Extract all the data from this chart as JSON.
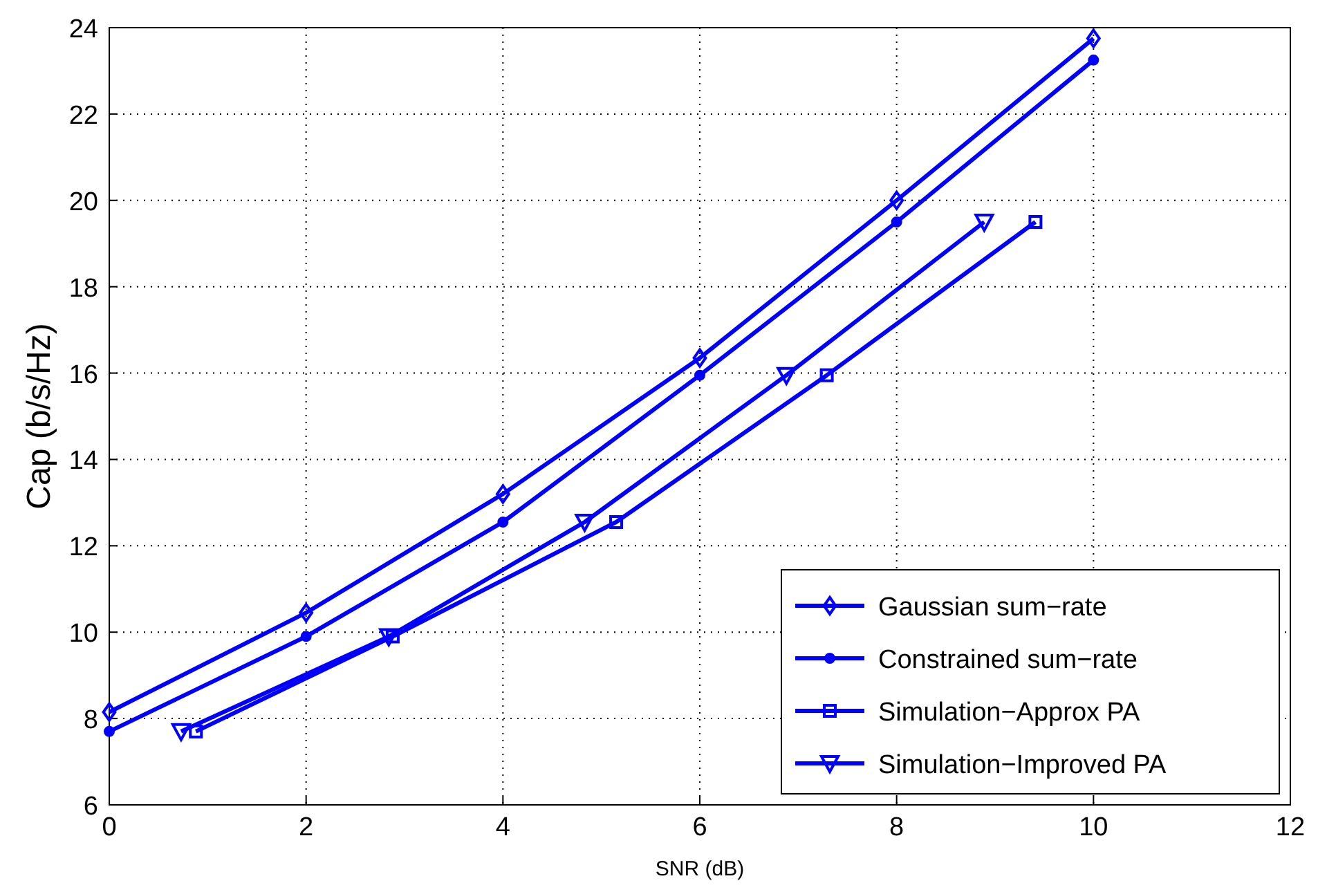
{
  "chart_data": {
    "type": "line",
    "xlabel": "SNR (dB)",
    "ylabel": "Cap (b/s/Hz)",
    "xlim": [
      0,
      12
    ],
    "xticks": [
      0,
      2,
      4,
      6,
      8,
      10,
      12
    ],
    "ylim": [
      6,
      24
    ],
    "yticks": [
      6,
      8,
      10,
      12,
      14,
      16,
      18,
      20,
      22,
      24
    ],
    "grid": true,
    "legend": "bottom right",
    "line_style": "solid",
    "series": [
      {
        "name": "Gaussian sum−rate",
        "color": "#0000ff",
        "marker": "diamond",
        "x": [
          0,
          2,
          4,
          6,
          8,
          10
        ],
        "values": [
          8.15,
          10.45,
          13.2,
          16.35,
          20.0,
          23.75
        ]
      },
      {
        "name": "Constrained sum−rate",
        "color": "#0000ff",
        "marker": "circle",
        "x": [
          0,
          2,
          4,
          6,
          8,
          10
        ],
        "values": [
          7.7,
          9.9,
          12.55,
          15.95,
          19.5,
          23.25
        ]
      },
      {
        "name": "Simulation−Approx PA",
        "color": "#0000ff",
        "marker": "square",
        "x": [
          0.88,
          2.88,
          5.15,
          7.29,
          9.41
        ],
        "values": [
          7.7,
          9.9,
          12.55,
          15.95,
          19.5
        ]
      },
      {
        "name": "Simulation−Improved PA",
        "color": "#0000ff",
        "marker": "triangle",
        "x": [
          0.73,
          2.84,
          4.83,
          6.88,
          8.89
        ],
        "values": [
          7.7,
          9.9,
          12.55,
          15.95,
          19.5
        ]
      }
    ]
  }
}
